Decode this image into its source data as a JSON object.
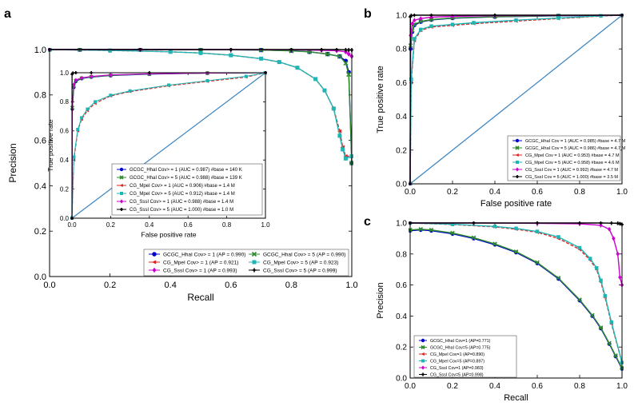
{
  "figure": {
    "panel_letters": [
      "a",
      "b",
      "c"
    ]
  },
  "chart_data": [
    {
      "id": "a",
      "type": "line",
      "title": "",
      "xlabel": "Recall",
      "ylabel": "Precision",
      "xlim": [
        0,
        1
      ],
      "ylim": [
        0,
        1
      ],
      "xticks": [
        "0.0",
        "0.2",
        "0.4",
        "0.6",
        "0.8",
        "1.0"
      ],
      "yticks": [
        "0.0",
        "0.2",
        "0.4",
        "0.6",
        "0.8",
        "1.0"
      ],
      "grid": false,
      "legend_position": "bottom-right",
      "series": [
        {
          "name": "GCGC_HhaI Cov> = 1 (AP = 0.990)",
          "color": "#0000cc",
          "marker": "circle",
          "x": [
            0,
            0.1,
            0.3,
            0.5,
            0.7,
            0.8,
            0.86,
            0.92,
            0.96,
            0.98,
            0.99,
            1.0
          ],
          "y": [
            1.0,
            1.0,
            1.0,
            1.0,
            0.998,
            0.995,
            0.99,
            0.98,
            0.97,
            0.95,
            0.9,
            0.5
          ]
        },
        {
          "name": "GCGC_HhaI Cov> = 5 (AP = 0.990)",
          "color": "#2e8b2e",
          "marker": "x",
          "x": [
            0,
            0.1,
            0.3,
            0.5,
            0.7,
            0.8,
            0.86,
            0.92,
            0.96,
            0.98,
            0.99,
            1.0
          ],
          "y": [
            1.0,
            1.0,
            1.0,
            1.0,
            0.998,
            0.994,
            0.99,
            0.98,
            0.97,
            0.94,
            0.89,
            0.5
          ]
        },
        {
          "name": "CG_MpeI Cov> = 1 (AP = 0.921)",
          "color": "#dd2222",
          "marker": "triangle-left",
          "x": [
            0,
            0.2,
            0.4,
            0.5,
            0.6,
            0.7,
            0.76,
            0.82,
            0.88,
            0.91,
            0.94,
            0.96,
            0.97,
            0.98,
            1.0
          ],
          "y": [
            1.0,
            0.996,
            0.99,
            0.985,
            0.975,
            0.96,
            0.945,
            0.92,
            0.87,
            0.82,
            0.74,
            0.64,
            0.57,
            0.53,
            0.53
          ]
        },
        {
          "name": "CG_MpeI Cov> = 5 (AP = 0.923)",
          "color": "#1fb5b5",
          "marker": "square",
          "x": [
            0,
            0.2,
            0.4,
            0.5,
            0.6,
            0.7,
            0.76,
            0.82,
            0.88,
            0.91,
            0.94,
            0.96,
            0.97,
            0.98,
            1.0
          ],
          "y": [
            1.0,
            0.996,
            0.99,
            0.985,
            0.975,
            0.96,
            0.945,
            0.92,
            0.87,
            0.82,
            0.74,
            0.62,
            0.56,
            0.52,
            0.53
          ]
        },
        {
          "name": "CG_SssI Cov> = 1 (AP = 0.993)",
          "color": "#cc00cc",
          "marker": "diamond",
          "x": [
            0,
            0.3,
            0.6,
            0.8,
            0.9,
            0.95,
            0.98,
            0.99,
            1.0
          ],
          "y": [
            1.0,
            1.0,
            1.0,
            0.999,
            0.997,
            0.995,
            0.99,
            0.98,
            0.97
          ]
        },
        {
          "name": "CG_SssI Cov> = 5 (AP = 0.999)",
          "color": "#000000",
          "marker": "plus",
          "x": [
            0,
            0.3,
            0.6,
            0.8,
            0.9,
            0.95,
            0.98,
            0.99,
            1.0
          ],
          "y": [
            1.0,
            1.0,
            1.0,
            1.0,
            1.0,
            1.0,
            0.999,
            0.998,
            0.998
          ]
        }
      ],
      "inset": {
        "xlabel": "False positive rate",
        "ylabel": "True positive rate",
        "xlim": [
          0,
          1
        ],
        "ylim": [
          0,
          1
        ],
        "xticks": [
          "0.0",
          "0.2",
          "0.4",
          "0.6",
          "0.8",
          "1.0"
        ],
        "yticks": [
          "0.0",
          "0.2",
          "0.4",
          "0.6",
          "0.8",
          "1.0"
        ],
        "legend_position": "bottom-right",
        "diagonal_color": "#3b83c0",
        "series": [
          {
            "name": "GCGC_HhaI Cov> = 1 (AUC = 0.987) #base = 140 K",
            "color": "#0000cc",
            "marker": "circle",
            "x": [
              0,
              0.002,
              0.01,
              0.02,
              0.05,
              0.1,
              0.2,
              0.4,
              0.7,
              1.0
            ],
            "y": [
              0,
              0.75,
              0.9,
              0.94,
              0.96,
              0.97,
              0.98,
              0.99,
              0.997,
              1.0
            ]
          },
          {
            "name": "GCGC_HhaI Cov> = 5 (AUC = 0.988) #base = 139 K",
            "color": "#2e8b2e",
            "marker": "x",
            "x": [
              0,
              0.002,
              0.01,
              0.02,
              0.05,
              0.1,
              0.2,
              0.4,
              0.7,
              1.0
            ],
            "y": [
              0,
              0.76,
              0.91,
              0.945,
              0.962,
              0.972,
              0.982,
              0.991,
              0.997,
              1.0
            ]
          },
          {
            "name": "CG_MpeI Cov> = 1 (AUC = 0.906) #base = 1.4 M",
            "color": "#dd2222",
            "marker": "triangle-left",
            "x": [
              0,
              0.01,
              0.03,
              0.05,
              0.08,
              0.12,
              0.2,
              0.3,
              0.5,
              0.7,
              0.9,
              1.0
            ],
            "y": [
              0,
              0.4,
              0.6,
              0.68,
              0.74,
              0.79,
              0.84,
              0.87,
              0.91,
              0.94,
              0.97,
              1.0
            ]
          },
          {
            "name": "CG_MpeI Cov> = 5 (AUC = 0.912) #base = 1.4 M",
            "color": "#1fb5b5",
            "marker": "square",
            "x": [
              0,
              0.01,
              0.03,
              0.05,
              0.08,
              0.12,
              0.2,
              0.3,
              0.5,
              0.7,
              0.9,
              1.0
            ],
            "y": [
              0,
              0.42,
              0.61,
              0.69,
              0.75,
              0.8,
              0.845,
              0.875,
              0.915,
              0.945,
              0.975,
              1.0
            ]
          },
          {
            "name": "CG_SssI Cov> = 1 (AUC = 0.988) #base = 1.4 M",
            "color": "#cc00cc",
            "marker": "diamond",
            "x": [
              0,
              0.002,
              0.01,
              0.02,
              0.05,
              0.1,
              0.2,
              0.4,
              0.7,
              1.0
            ],
            "y": [
              0,
              0.8,
              0.92,
              0.95,
              0.965,
              0.975,
              0.985,
              0.993,
              0.998,
              1.0
            ]
          },
          {
            "name": "CG_SssI Cov> = 5 (AUC = 1.000) #base = 1.0 M",
            "color": "#000000",
            "marker": "plus",
            "x": [
              0,
              0.001,
              0.005,
              0.02,
              0.1,
              0.4,
              1.0
            ],
            "y": [
              0,
              0.99,
              0.998,
              1.0,
              1.0,
              1.0,
              1.0
            ]
          }
        ]
      }
    },
    {
      "id": "b",
      "type": "line",
      "title": "",
      "xlabel": "False positive rate",
      "ylabel": "True positive rate",
      "xlim": [
        0,
        1
      ],
      "ylim": [
        0,
        1
      ],
      "xticks": [
        "0.0",
        "0.2",
        "0.4",
        "0.6",
        "0.8",
        "1.0"
      ],
      "yticks": [
        "0.0",
        "0.2",
        "0.4",
        "0.6",
        "0.8",
        "1.0"
      ],
      "grid": false,
      "legend_position": "bottom-right",
      "diagonal_color": "#3b83c0",
      "series": [
        {
          "name": "GCGC_HhaI Cov = 1 (AUC = 0.985) #base = 4.7 M",
          "color": "#0000cc",
          "marker": "circle",
          "x": [
            0,
            0.002,
            0.01,
            0.02,
            0.05,
            0.1,
            0.2,
            0.4,
            0.7,
            1.0
          ],
          "y": [
            0,
            0.8,
            0.9,
            0.94,
            0.96,
            0.972,
            0.982,
            0.99,
            0.996,
            1.0
          ]
        },
        {
          "name": "GCGC_HhaI Cov = 5 (AUC = 0.986) #base = 4.7 M",
          "color": "#2e8b2e",
          "marker": "x",
          "x": [
            0,
            0.002,
            0.01,
            0.02,
            0.05,
            0.1,
            0.2,
            0.4,
            0.7,
            1.0
          ],
          "y": [
            0,
            0.82,
            0.91,
            0.945,
            0.963,
            0.974,
            0.984,
            0.991,
            0.997,
            1.0
          ]
        },
        {
          "name": "CG_MpeI Cov = 1 (AUC = 0.953) #base = 4.7 M",
          "color": "#dd2222",
          "marker": "triangle-left",
          "x": [
            0,
            0.005,
            0.02,
            0.05,
            0.1,
            0.2,
            0.3,
            0.5,
            0.7,
            0.9,
            1.0
          ],
          "y": [
            0,
            0.6,
            0.85,
            0.91,
            0.93,
            0.94,
            0.95,
            0.965,
            0.98,
            0.995,
            1.0
          ]
        },
        {
          "name": "CG_MpeI Cov = 5 (AUC = 0.958) #base = 4.6 M",
          "color": "#1fb5b5",
          "marker": "square",
          "x": [
            0,
            0.005,
            0.02,
            0.05,
            0.1,
            0.2,
            0.3,
            0.5,
            0.7,
            0.9,
            1.0
          ],
          "y": [
            0,
            0.62,
            0.86,
            0.915,
            0.935,
            0.945,
            0.955,
            0.97,
            0.983,
            0.996,
            1.0
          ]
        },
        {
          "name": "CG_SssI Cov = 1 (AUC = 0.992) #base = 4.7 M",
          "color": "#cc00cc",
          "marker": "diamond",
          "x": [
            0,
            0.002,
            0.01,
            0.02,
            0.05,
            0.1,
            0.2,
            0.4,
            1.0
          ],
          "y": [
            0,
            0.88,
            0.95,
            0.97,
            0.98,
            0.988,
            0.993,
            0.997,
            1.0
          ]
        },
        {
          "name": "CG_SssI Cov = 5 (AUC = 1.000) #base = 3.5 M",
          "color": "#000000",
          "marker": "plus",
          "x": [
            0,
            0.001,
            0.005,
            0.02,
            0.1,
            0.4,
            1.0
          ],
          "y": [
            0,
            0.99,
            0.998,
            1.0,
            1.0,
            1.0,
            1.0
          ]
        }
      ]
    },
    {
      "id": "c",
      "type": "line",
      "title": "",
      "xlabel": "Recall",
      "ylabel": "Precision",
      "xlim": [
        0,
        1
      ],
      "ylim": [
        0,
        1
      ],
      "xticks": [
        "0.0",
        "0.2",
        "0.4",
        "0.6",
        "0.8",
        "1.0"
      ],
      "yticks": [
        "0.0",
        "0.2",
        "0.4",
        "0.6",
        "0.8",
        "1.0"
      ],
      "grid": false,
      "legend_position": "bottom-left",
      "series": [
        {
          "name": "GCGC_HhaI Cov=1 (AP=0.771)",
          "color": "#0000cc",
          "marker": "circle",
          "x": [
            0,
            0.05,
            0.1,
            0.2,
            0.3,
            0.4,
            0.5,
            0.6,
            0.7,
            0.8,
            0.86,
            0.9,
            0.94,
            0.97,
            1.0
          ],
          "y": [
            0.95,
            0.955,
            0.95,
            0.93,
            0.9,
            0.86,
            0.81,
            0.74,
            0.64,
            0.5,
            0.4,
            0.32,
            0.22,
            0.14,
            0.06
          ]
        },
        {
          "name": "GCGC_HhaI Cov=5 (AP=0.775)",
          "color": "#2e8b2e",
          "marker": "x",
          "x": [
            0,
            0.05,
            0.1,
            0.2,
            0.3,
            0.4,
            0.5,
            0.6,
            0.7,
            0.8,
            0.86,
            0.9,
            0.94,
            0.97,
            1.0
          ],
          "y": [
            0.955,
            0.96,
            0.955,
            0.935,
            0.905,
            0.865,
            0.815,
            0.745,
            0.645,
            0.505,
            0.405,
            0.325,
            0.225,
            0.145,
            0.065
          ]
        },
        {
          "name": "CG_MpeI Cov=1 (AP=0.890)",
          "color": "#dd2222",
          "marker": "triangle-left",
          "x": [
            0,
            0.2,
            0.4,
            0.5,
            0.6,
            0.7,
            0.8,
            0.85,
            0.88,
            0.9,
            0.92,
            0.95,
            1.0
          ],
          "y": [
            1.0,
            0.99,
            0.975,
            0.96,
            0.94,
            0.9,
            0.83,
            0.76,
            0.7,
            0.62,
            0.52,
            0.35,
            0.1
          ]
        },
        {
          "name": "CG_MpeI Cov=5 (AP=0.897)",
          "color": "#1fb5b5",
          "marker": "square",
          "x": [
            0,
            0.2,
            0.4,
            0.5,
            0.6,
            0.7,
            0.8,
            0.85,
            0.88,
            0.9,
            0.92,
            0.95,
            1.0
          ],
          "y": [
            1.0,
            0.992,
            0.978,
            0.965,
            0.945,
            0.91,
            0.84,
            0.77,
            0.71,
            0.63,
            0.53,
            0.36,
            0.1
          ]
        },
        {
          "name": "CG_SssI Cov=1 (AP=0.983)",
          "color": "#cc00cc",
          "marker": "diamond",
          "x": [
            0,
            0.3,
            0.6,
            0.8,
            0.9,
            0.94,
            0.96,
            0.98,
            0.99,
            1.0
          ],
          "y": [
            1.0,
            1.0,
            0.998,
            0.995,
            0.985,
            0.96,
            0.9,
            0.8,
            0.65,
            0.6
          ]
        },
        {
          "name": "CG_SssI Cov=5 (AP=0.998)",
          "color": "#000000",
          "marker": "plus",
          "x": [
            0,
            0.3,
            0.6,
            0.8,
            0.9,
            0.95,
            0.98,
            0.99,
            1.0
          ],
          "y": [
            1.0,
            1.0,
            1.0,
            1.0,
            1.0,
            0.999,
            0.998,
            0.995,
            0.99
          ]
        }
      ]
    }
  ]
}
